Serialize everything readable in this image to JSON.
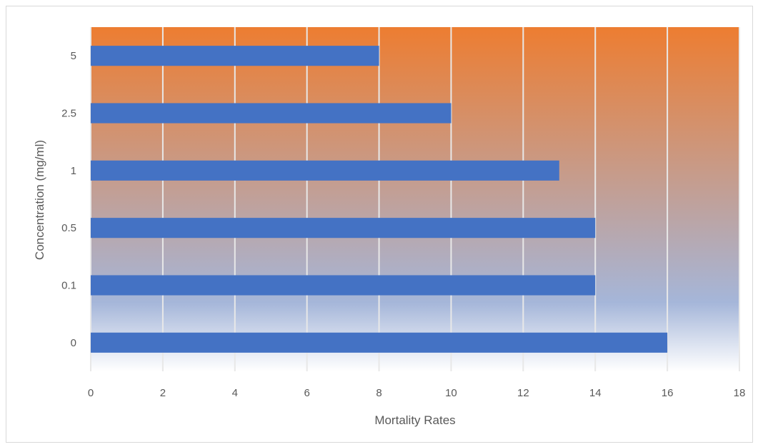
{
  "chart_data": {
    "type": "bar",
    "orientation": "horizontal",
    "title": "",
    "xlabel": "Mortality Rates",
    "ylabel": "Concentration (mg/ml)",
    "categories": [
      "0",
      "0.1",
      "0.5",
      "1",
      "2.5",
      "5"
    ],
    "values": [
      16,
      14,
      14,
      13,
      10,
      8
    ],
    "xlim": [
      0,
      18
    ],
    "xticks": [
      "0",
      "2",
      "4",
      "6",
      "8",
      "10",
      "12",
      "14",
      "16",
      "18"
    ],
    "grid": "vertical",
    "legend": "none"
  },
  "colors": {
    "bar": "#4472c4",
    "background_top": "#ed7d31",
    "background_mid": "#a5b6d9",
    "background_bottom": "#ffffff",
    "gridline": "#e8e8e8",
    "text": "#595959"
  }
}
